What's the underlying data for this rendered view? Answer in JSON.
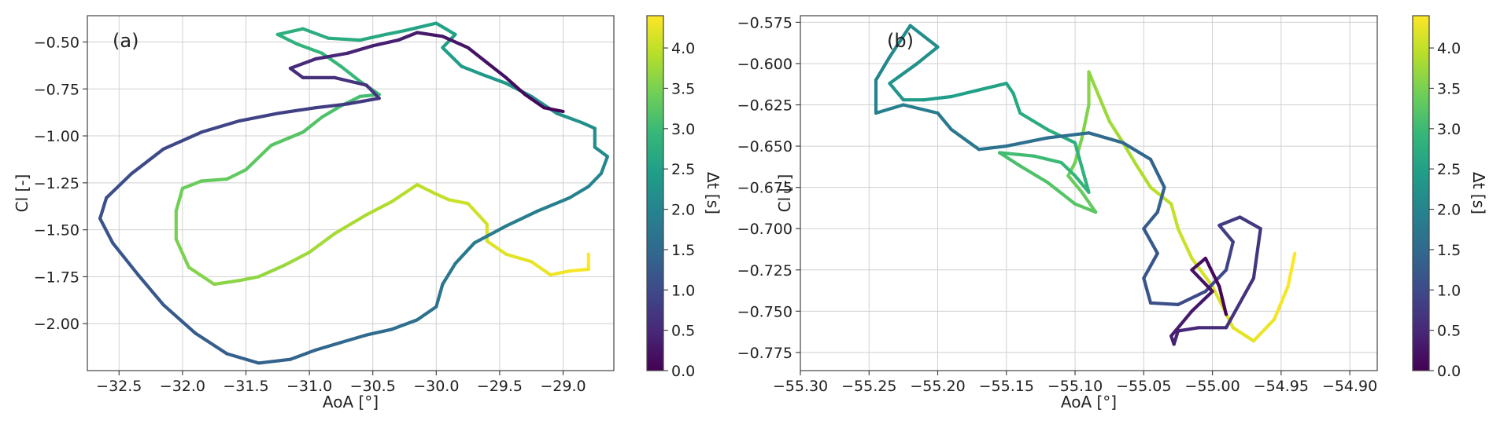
{
  "chart_data": [
    {
      "type": "line",
      "panel_label": "(a)",
      "xlabel": "AoA [°]",
      "ylabel": "Cl [-]",
      "xlim": [
        -32.75,
        -28.6
      ],
      "ylim": [
        -2.25,
        -0.36
      ],
      "xticks": [
        -32.5,
        -32.0,
        -31.5,
        -31.0,
        -30.5,
        -30.0,
        -29.5,
        -29.0
      ],
      "xtick_labels": [
        "−32.5",
        "−32.0",
        "−31.5",
        "−31.0",
        "−30.5",
        "−30.0",
        "−29.5",
        "−29.0"
      ],
      "yticks": [
        -0.5,
        -0.75,
        -1.0,
        -1.25,
        -1.5,
        -1.75,
        -2.0
      ],
      "ytick_labels": [
        "−0.50",
        "−0.75",
        "−1.00",
        "−1.25",
        "−1.50",
        "−1.75",
        "−2.00"
      ],
      "grid": true,
      "color_encoding": "Δt [s]",
      "trajectory": [
        [
          -28.8,
          -1.63
        ],
        [
          -28.8,
          -1.71
        ],
        [
          -28.95,
          -1.72
        ],
        [
          -29.1,
          -1.74
        ],
        [
          -29.25,
          -1.67
        ],
        [
          -29.45,
          -1.63
        ],
        [
          -29.6,
          -1.56
        ],
        [
          -29.6,
          -1.47
        ],
        [
          -29.75,
          -1.36
        ],
        [
          -29.9,
          -1.34
        ],
        [
          -30.0,
          -1.31
        ],
        [
          -30.15,
          -1.26
        ],
        [
          -30.35,
          -1.35
        ],
        [
          -30.55,
          -1.42
        ],
        [
          -30.8,
          -1.52
        ],
        [
          -31.0,
          -1.62
        ],
        [
          -31.2,
          -1.69
        ],
        [
          -31.4,
          -1.75
        ],
        [
          -31.55,
          -1.77
        ],
        [
          -31.75,
          -1.79
        ],
        [
          -31.95,
          -1.7
        ],
        [
          -32.05,
          -1.55
        ],
        [
          -32.05,
          -1.4
        ],
        [
          -32.0,
          -1.28
        ],
        [
          -31.85,
          -1.24
        ],
        [
          -31.65,
          -1.23
        ],
        [
          -31.5,
          -1.18
        ],
        [
          -31.3,
          -1.05
        ],
        [
          -31.05,
          -0.98
        ],
        [
          -30.9,
          -0.9
        ],
        [
          -30.75,
          -0.84
        ],
        [
          -30.6,
          -0.79
        ],
        [
          -30.45,
          -0.78
        ],
        [
          -30.6,
          -0.71
        ],
        [
          -30.75,
          -0.63
        ],
        [
          -30.9,
          -0.56
        ],
        [
          -31.1,
          -0.51
        ],
        [
          -31.25,
          -0.46
        ],
        [
          -31.05,
          -0.43
        ],
        [
          -30.85,
          -0.48
        ],
        [
          -30.6,
          -0.49
        ],
        [
          -30.4,
          -0.46
        ],
        [
          -30.25,
          -0.44
        ],
        [
          -30.0,
          -0.4
        ],
        [
          -29.85,
          -0.46
        ],
        [
          -29.95,
          -0.53
        ],
        [
          -29.8,
          -0.63
        ],
        [
          -29.65,
          -0.67
        ],
        [
          -29.45,
          -0.72
        ],
        [
          -29.25,
          -0.79
        ],
        [
          -29.05,
          -0.88
        ],
        [
          -28.85,
          -0.93
        ],
        [
          -28.75,
          -0.96
        ],
        [
          -28.75,
          -1.06
        ],
        [
          -28.65,
          -1.11
        ],
        [
          -28.7,
          -1.2
        ],
        [
          -28.8,
          -1.27
        ],
        [
          -28.95,
          -1.33
        ],
        [
          -29.2,
          -1.4
        ],
        [
          -29.45,
          -1.48
        ],
        [
          -29.7,
          -1.57
        ],
        [
          -29.85,
          -1.68
        ],
        [
          -29.95,
          -1.79
        ],
        [
          -30.0,
          -1.91
        ],
        [
          -30.15,
          -1.98
        ],
        [
          -30.35,
          -2.03
        ],
        [
          -30.55,
          -2.06
        ],
        [
          -30.75,
          -2.1
        ],
        [
          -30.95,
          -2.14
        ],
        [
          -31.15,
          -2.19
        ],
        [
          -31.4,
          -2.21
        ],
        [
          -31.65,
          -2.16
        ],
        [
          -31.9,
          -2.05
        ],
        [
          -32.15,
          -1.9
        ],
        [
          -32.35,
          -1.74
        ],
        [
          -32.55,
          -1.57
        ],
        [
          -32.65,
          -1.44
        ],
        [
          -32.6,
          -1.33
        ],
        [
          -32.4,
          -1.2
        ],
        [
          -32.15,
          -1.07
        ],
        [
          -31.85,
          -0.98
        ],
        [
          -31.55,
          -0.92
        ],
        [
          -31.25,
          -0.88
        ],
        [
          -30.95,
          -0.85
        ],
        [
          -30.7,
          -0.83
        ],
        [
          -30.45,
          -0.8
        ],
        [
          -30.55,
          -0.73
        ],
        [
          -30.8,
          -0.69
        ],
        [
          -31.05,
          -0.69
        ],
        [
          -31.15,
          -0.64
        ],
        [
          -30.95,
          -0.59
        ],
        [
          -30.7,
          -0.56
        ],
        [
          -30.5,
          -0.52
        ],
        [
          -30.3,
          -0.49
        ],
        [
          -30.15,
          -0.45
        ],
        [
          -29.95,
          -0.47
        ],
        [
          -29.75,
          -0.53
        ],
        [
          -29.6,
          -0.61
        ],
        [
          -29.45,
          -0.69
        ],
        [
          -29.3,
          -0.78
        ],
        [
          -29.15,
          -0.85
        ],
        [
          -29.0,
          -0.87
        ]
      ]
    },
    {
      "type": "line",
      "panel_label": "(b)",
      "xlabel": "AoA [°]",
      "ylabel": "Cl [-]",
      "xlim": [
        -55.3,
        -54.88
      ],
      "ylim": [
        -0.786,
        -0.571
      ],
      "xticks": [
        -55.3,
        -55.25,
        -55.2,
        -55.15,
        -55.1,
        -55.05,
        -55.0,
        -54.95,
        -54.9
      ],
      "xtick_labels": [
        "−55.30",
        "−55.25",
        "−55.20",
        "−55.15",
        "−55.10",
        "−55.05",
        "−55.00",
        "−54.95",
        "−54.90"
      ],
      "yticks": [
        -0.575,
        -0.6,
        -0.625,
        -0.65,
        -0.675,
        -0.7,
        -0.725,
        -0.75,
        -0.775
      ],
      "ytick_labels": [
        "−0.575",
        "−0.600",
        "−0.625",
        "−0.650",
        "−0.675",
        "−0.700",
        "−0.725",
        "−0.750",
        "−0.775"
      ],
      "grid": true,
      "color_encoding": "Δt [s]",
      "trajectory": [
        [
          -54.94,
          -0.715
        ],
        [
          -54.945,
          -0.735
        ],
        [
          -54.955,
          -0.755
        ],
        [
          -54.97,
          -0.768
        ],
        [
          -54.985,
          -0.76
        ],
        [
          -55.0,
          -0.735
        ],
        [
          -55.015,
          -0.718
        ],
        [
          -55.025,
          -0.7
        ],
        [
          -55.03,
          -0.685
        ],
        [
          -55.045,
          -0.675
        ],
        [
          -55.055,
          -0.662
        ],
        [
          -55.065,
          -0.648
        ],
        [
          -55.075,
          -0.635
        ],
        [
          -55.085,
          -0.615
        ],
        [
          -55.09,
          -0.605
        ],
        [
          -55.09,
          -0.625
        ],
        [
          -55.095,
          -0.645
        ],
        [
          -55.1,
          -0.66
        ],
        [
          -55.105,
          -0.668
        ],
        [
          -55.095,
          -0.678
        ],
        [
          -55.085,
          -0.69
        ],
        [
          -55.1,
          -0.685
        ],
        [
          -55.12,
          -0.672
        ],
        [
          -55.14,
          -0.662
        ],
        [
          -55.155,
          -0.654
        ],
        [
          -55.13,
          -0.656
        ],
        [
          -55.11,
          -0.66
        ],
        [
          -55.1,
          -0.668
        ],
        [
          -55.09,
          -0.678
        ],
        [
          -55.1,
          -0.648
        ],
        [
          -55.12,
          -0.64
        ],
        [
          -55.14,
          -0.63
        ],
        [
          -55.145,
          -0.618
        ],
        [
          -55.15,
          -0.612
        ],
        [
          -55.17,
          -0.616
        ],
        [
          -55.19,
          -0.62
        ],
        [
          -55.21,
          -0.622
        ],
        [
          -55.225,
          -0.622
        ],
        [
          -55.235,
          -0.612
        ],
        [
          -55.215,
          -0.6
        ],
        [
          -55.2,
          -0.59
        ],
        [
          -55.22,
          -0.577
        ],
        [
          -55.235,
          -0.596
        ],
        [
          -55.245,
          -0.61
        ],
        [
          -55.245,
          -0.63
        ],
        [
          -55.225,
          -0.625
        ],
        [
          -55.2,
          -0.63
        ],
        [
          -55.19,
          -0.64
        ],
        [
          -55.17,
          -0.652
        ],
        [
          -55.15,
          -0.65
        ],
        [
          -55.12,
          -0.645
        ],
        [
          -55.09,
          -0.642
        ],
        [
          -55.065,
          -0.648
        ],
        [
          -55.045,
          -0.658
        ],
        [
          -55.035,
          -0.675
        ],
        [
          -55.04,
          -0.69
        ],
        [
          -55.05,
          -0.7
        ],
        [
          -55.04,
          -0.715
        ],
        [
          -55.05,
          -0.73
        ],
        [
          -55.045,
          -0.745
        ],
        [
          -55.025,
          -0.746
        ],
        [
          -55.005,
          -0.738
        ],
        [
          -54.99,
          -0.725
        ],
        [
          -54.985,
          -0.708
        ],
        [
          -54.995,
          -0.698
        ],
        [
          -54.98,
          -0.693
        ],
        [
          -54.965,
          -0.7
        ],
        [
          -54.97,
          -0.73
        ],
        [
          -54.99,
          -0.76
        ],
        [
          -55.01,
          -0.76
        ],
        [
          -55.025,
          -0.762
        ],
        [
          -55.028,
          -0.77
        ],
        [
          -55.03,
          -0.765
        ],
        [
          -55.015,
          -0.75
        ],
        [
          -55.0,
          -0.738
        ],
        [
          -55.015,
          -0.725
        ],
        [
          -55.005,
          -0.718
        ],
        [
          -54.995,
          -0.735
        ],
        [
          -54.99,
          -0.752
        ]
      ]
    }
  ],
  "colorbar": {
    "label": "Δt [s]",
    "range": [
      0.0,
      4.4
    ],
    "ticks": [
      0.0,
      0.5,
      1.0,
      1.5,
      2.0,
      2.5,
      3.0,
      3.5,
      4.0
    ],
    "tick_labels": [
      "0.0",
      "0.5",
      "1.0",
      "1.5",
      "2.0",
      "2.5",
      "3.0",
      "3.5",
      "4.0"
    ],
    "colormap": "viridis",
    "colormap_stops": [
      "#440154",
      "#482878",
      "#3e4989",
      "#31688e",
      "#26828e",
      "#1f9e89",
      "#35b779",
      "#6ece58",
      "#b5de2b",
      "#fde725"
    ]
  }
}
